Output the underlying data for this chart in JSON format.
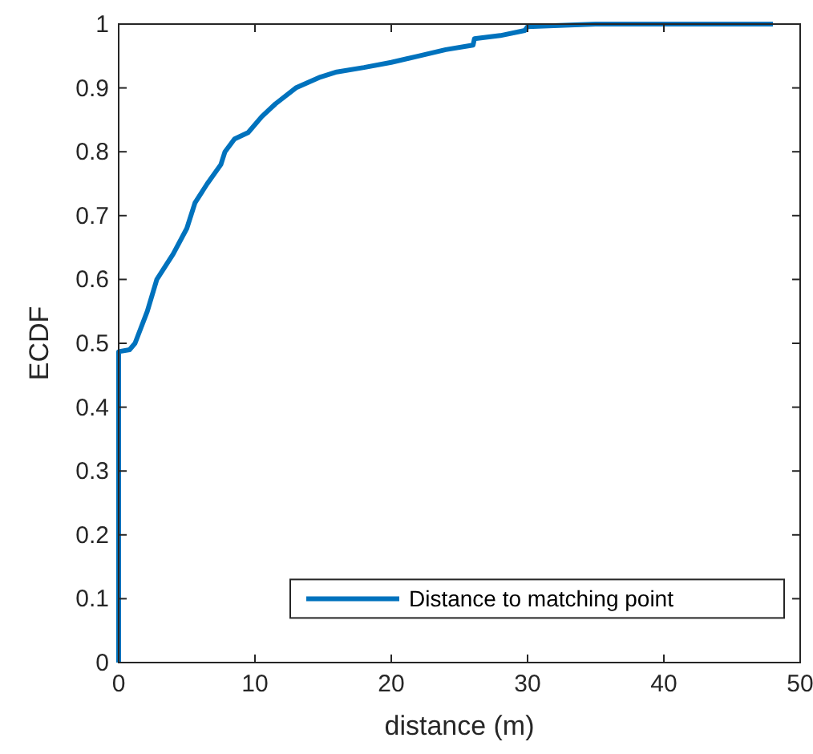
{
  "chart_data": {
    "type": "step",
    "xlabel": "distance (m)",
    "ylabel": "ECDF",
    "xlim": [
      0,
      50
    ],
    "ylim": [
      0,
      1
    ],
    "xticks": [
      0,
      10,
      20,
      30,
      40,
      50
    ],
    "yticks": [
      0,
      0.1,
      0.2,
      0.3,
      0.4,
      0.5,
      0.6,
      0.7,
      0.8,
      0.9,
      1
    ],
    "legend": "bottom right",
    "grid": false,
    "series": [
      {
        "name": "Distance to matching point",
        "color": "#0072bd",
        "x": [
          0,
          0,
          0.8,
          1.2,
          2.1,
          2.8,
          4,
          5,
          5.6,
          6.5,
          7.5,
          7.8,
          8.5,
          9.5,
          10.5,
          11.5,
          13,
          14.8,
          16,
          18,
          20,
          22,
          24,
          26,
          26.1,
          28,
          29.8,
          30,
          35,
          48
        ],
        "values": [
          0,
          0.487,
          0.49,
          0.5,
          0.55,
          0.6,
          0.64,
          0.68,
          0.72,
          0.75,
          0.78,
          0.8,
          0.82,
          0.83,
          0.855,
          0.875,
          0.9,
          0.917,
          0.925,
          0.932,
          0.94,
          0.95,
          0.96,
          0.967,
          0.977,
          0.982,
          0.99,
          0.996,
          1,
          1
        ]
      }
    ]
  }
}
